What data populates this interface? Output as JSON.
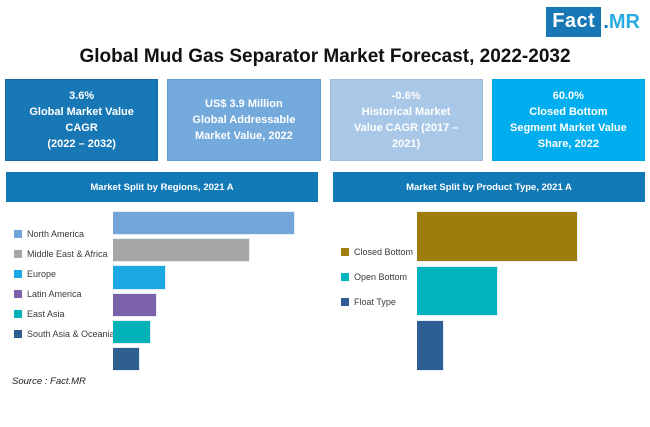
{
  "logo": {
    "fact": "Fact",
    "dot": ".",
    "mr": "MR"
  },
  "title": "Global Mud Gas Separator Market Forecast, 2022-2032",
  "stat_boxes": [
    {
      "bg": "#1878b6",
      "lines": [
        "3.6%",
        "Global Market Value",
        "CAGR",
        "(2022 – 2032)"
      ]
    },
    {
      "bg": "#74a9dc",
      "lines": [
        "US$ 3.9 Million",
        "Global Addressable",
        "Market Value, 2022"
      ]
    },
    {
      "bg": "#a9c7e6",
      "lines": [
        "-0.6%",
        "Historical Market",
        "Value CAGR (2017 –",
        "2021)"
      ]
    },
    {
      "bg": "#00aeef",
      "lines": [
        "60.0%",
        "Closed Bottom",
        "Segment Market Value",
        "Share, 2022"
      ]
    }
  ],
  "chart_data": [
    {
      "type": "bar",
      "orientation": "horizontal",
      "title": "Market Split by Regions, 2021 A",
      "categories": [
        "North America",
        "Middle East & Africa",
        "Europe",
        "Latin America",
        "East Asia",
        "South Asia & Oceania"
      ],
      "bar_length_pct_of_max": [
        100,
        75,
        29,
        24,
        21,
        15
      ],
      "share_pct_estimated": [
        38,
        28,
        11,
        9,
        8,
        6
      ],
      "colors": [
        "#74a5d8",
        "#a6a6a6",
        "#1ba8e3",
        "#7a61a9",
        "#00b1b8",
        "#2e5f8f"
      ],
      "axis_ticks_shown": false,
      "data_labels_shown": false,
      "legend_position": "left"
    },
    {
      "type": "bar",
      "orientation": "horizontal",
      "title": "Market Split by Product Type, 2021 A",
      "categories": [
        "Closed Bottom",
        "Open Bottom",
        "Float Type"
      ],
      "bar_length_pct_of_max": [
        100,
        50,
        17
      ],
      "share_pct_estimated": [
        60,
        30,
        10
      ],
      "colors": [
        "#9e7d0b",
        "#00b3be",
        "#2e5f94"
      ],
      "axis_ticks_shown": false,
      "data_labels_shown": false,
      "legend_position": "left"
    }
  ],
  "source": "Source : Fact.MR"
}
